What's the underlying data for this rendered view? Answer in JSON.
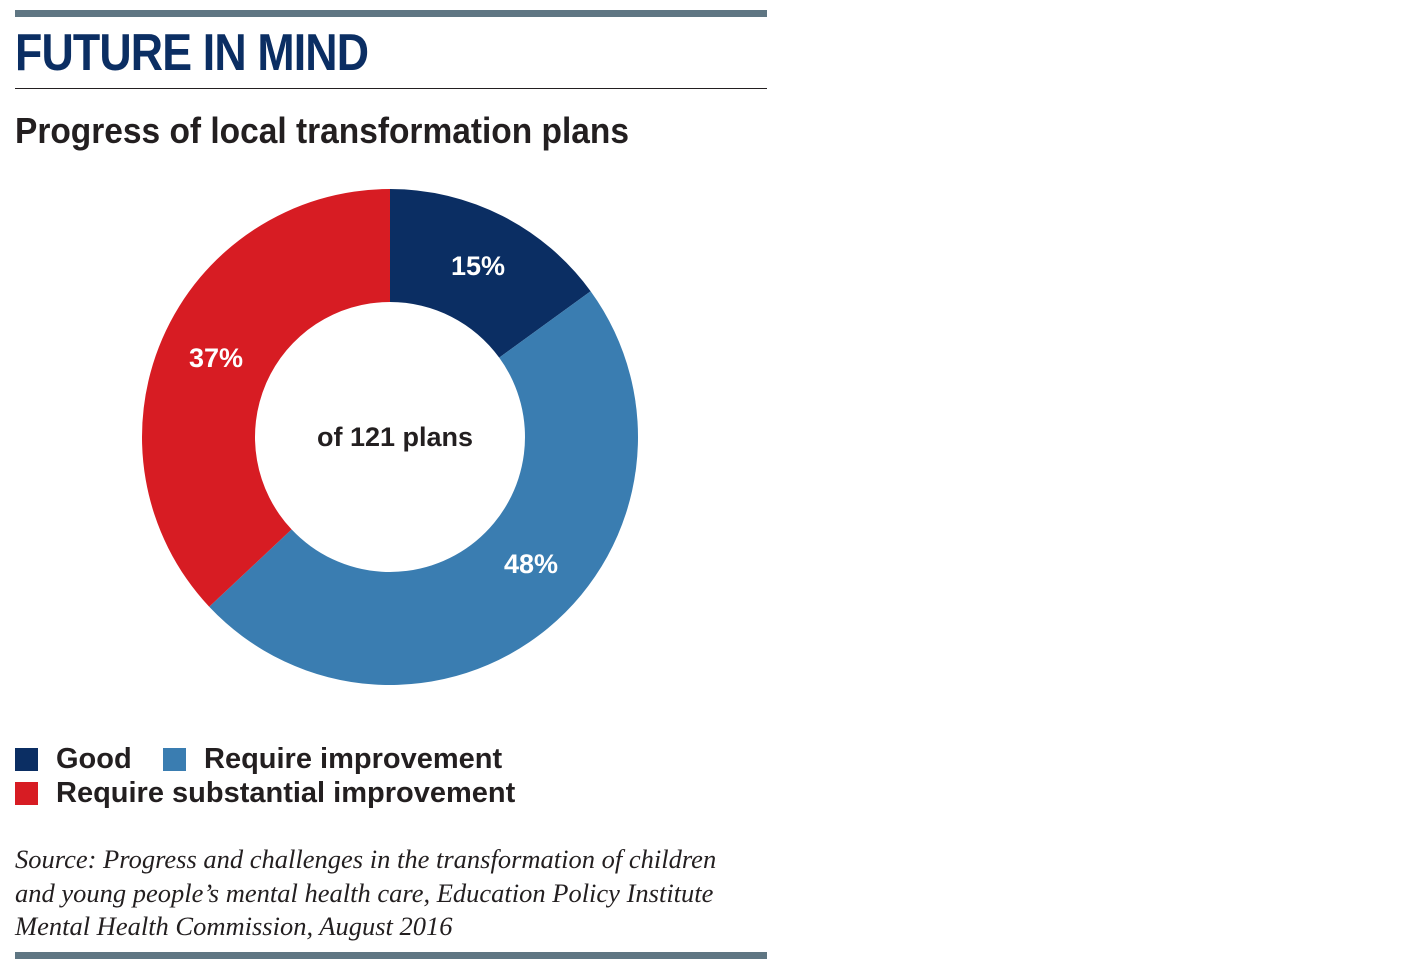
{
  "header": {
    "title": "FUTURE IN MIND",
    "subtitle": "Progress of local transformation plans"
  },
  "chart_data": {
    "type": "pie",
    "donut": true,
    "center_label": "of 121 plans",
    "categories": [
      "Good",
      "Require improvement",
      "Require substantial improvement"
    ],
    "values": [
      15,
      48,
      37
    ],
    "labels": [
      "15%",
      "48%",
      "37%"
    ],
    "colors": [
      "#0b2e63",
      "#3a7db1",
      "#d71c23"
    ],
    "legend_position": "bottom"
  },
  "legend": {
    "items": [
      {
        "label": "Good",
        "color": "#0b2e63"
      },
      {
        "label": "Require improvement",
        "color": "#3a7db1"
      },
      {
        "label": "Require substantial improvement",
        "color": "#d71c23"
      }
    ]
  },
  "footer": {
    "source": "Source: Progress and challenges in the transformation of children and young people’s mental health care, Education Policy Institute Mental Health Commission, August 2016"
  },
  "colors": {
    "rule": "#5f7683",
    "headline": "#0b2e63",
    "text": "#231f20"
  }
}
